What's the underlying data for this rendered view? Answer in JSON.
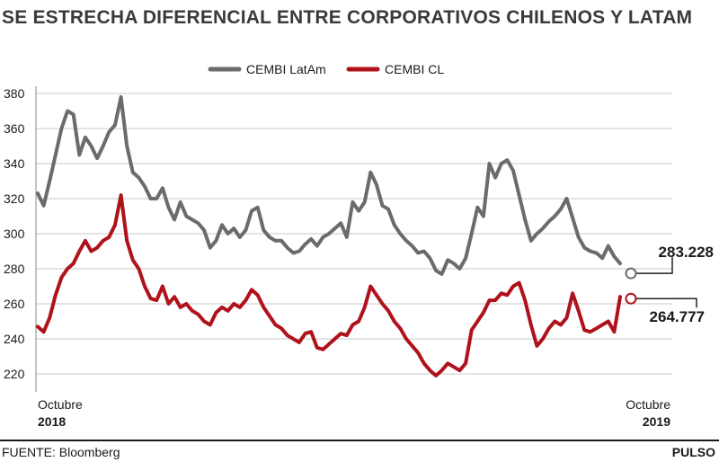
{
  "title": "SE ESTRECHA DIFERENCIAL ENTRE CORPORATIVOS CHILENOS Y LATAM",
  "source": "FUENTE: Bloomberg",
  "brand": "PULSO",
  "colors": {
    "latam": "#6b6b6b",
    "cl": "#b0121b",
    "grid": "#c8c8c8",
    "text": "#1a1a1a"
  },
  "chart_data": {
    "type": "line",
    "title": "SE ESTRECHA DIFERENCIAL ENTRE CORPORATIVOS CHILENOS Y LATAM",
    "xlabel": "",
    "ylabel": "",
    "ylim": [
      210,
      385
    ],
    "yticks": [
      220,
      240,
      260,
      280,
      300,
      320,
      340,
      360,
      380
    ],
    "grid": true,
    "legend": "top-center",
    "x_start_label": {
      "month": "Octubre",
      "year": "2018"
    },
    "x_end_label": {
      "month": "Octubre",
      "year": "2019"
    },
    "series": [
      {
        "name": "CEMBI LatAm",
        "color": "#6b6b6b",
        "end_label": "283.228",
        "values": [
          323,
          316,
          330,
          345,
          360,
          370,
          368,
          345,
          355,
          350,
          343,
          350,
          358,
          362,
          378,
          350,
          335,
          332,
          327,
          320,
          320,
          326,
          315,
          308,
          318,
          310,
          308,
          306,
          302,
          292,
          296,
          305,
          300,
          303,
          298,
          302,
          313,
          315,
          302,
          298,
          296,
          296,
          292,
          289,
          290,
          294,
          297,
          293,
          298,
          300,
          303,
          306,
          298,
          318,
          313,
          318,
          335,
          328,
          316,
          314,
          305,
          300,
          296,
          293,
          289,
          290,
          286,
          279,
          277,
          285,
          283,
          280,
          286,
          300,
          315,
          310,
          340,
          332,
          340,
          342,
          336,
          322,
          308,
          296,
          300,
          303,
          307,
          310,
          314,
          320,
          309,
          298,
          292,
          290,
          289,
          286,
          293,
          287,
          283
        ]
      },
      {
        "name": "CEMBI CL",
        "color": "#b0121b",
        "end_label": "264.777",
        "values": [
          247,
          244,
          252,
          265,
          275,
          280,
          283,
          290,
          296,
          290,
          292,
          296,
          298,
          305,
          322,
          296,
          285,
          280,
          270,
          263,
          262,
          270,
          260,
          264,
          258,
          260,
          256,
          254,
          250,
          248,
          255,
          258,
          256,
          260,
          258,
          262,
          268,
          265,
          258,
          253,
          248,
          246,
          242,
          240,
          238,
          243,
          244,
          235,
          234,
          237,
          240,
          243,
          242,
          248,
          250,
          258,
          270,
          265,
          260,
          256,
          250,
          246,
          240,
          236,
          232,
          226,
          222,
          219,
          222,
          226,
          224,
          222,
          226,
          245,
          250,
          255,
          262,
          262,
          266,
          265,
          270,
          272,
          262,
          248,
          236,
          240,
          246,
          250,
          248,
          252,
          266,
          256,
          245,
          244,
          246,
          248,
          250,
          244,
          264
        ]
      }
    ]
  }
}
